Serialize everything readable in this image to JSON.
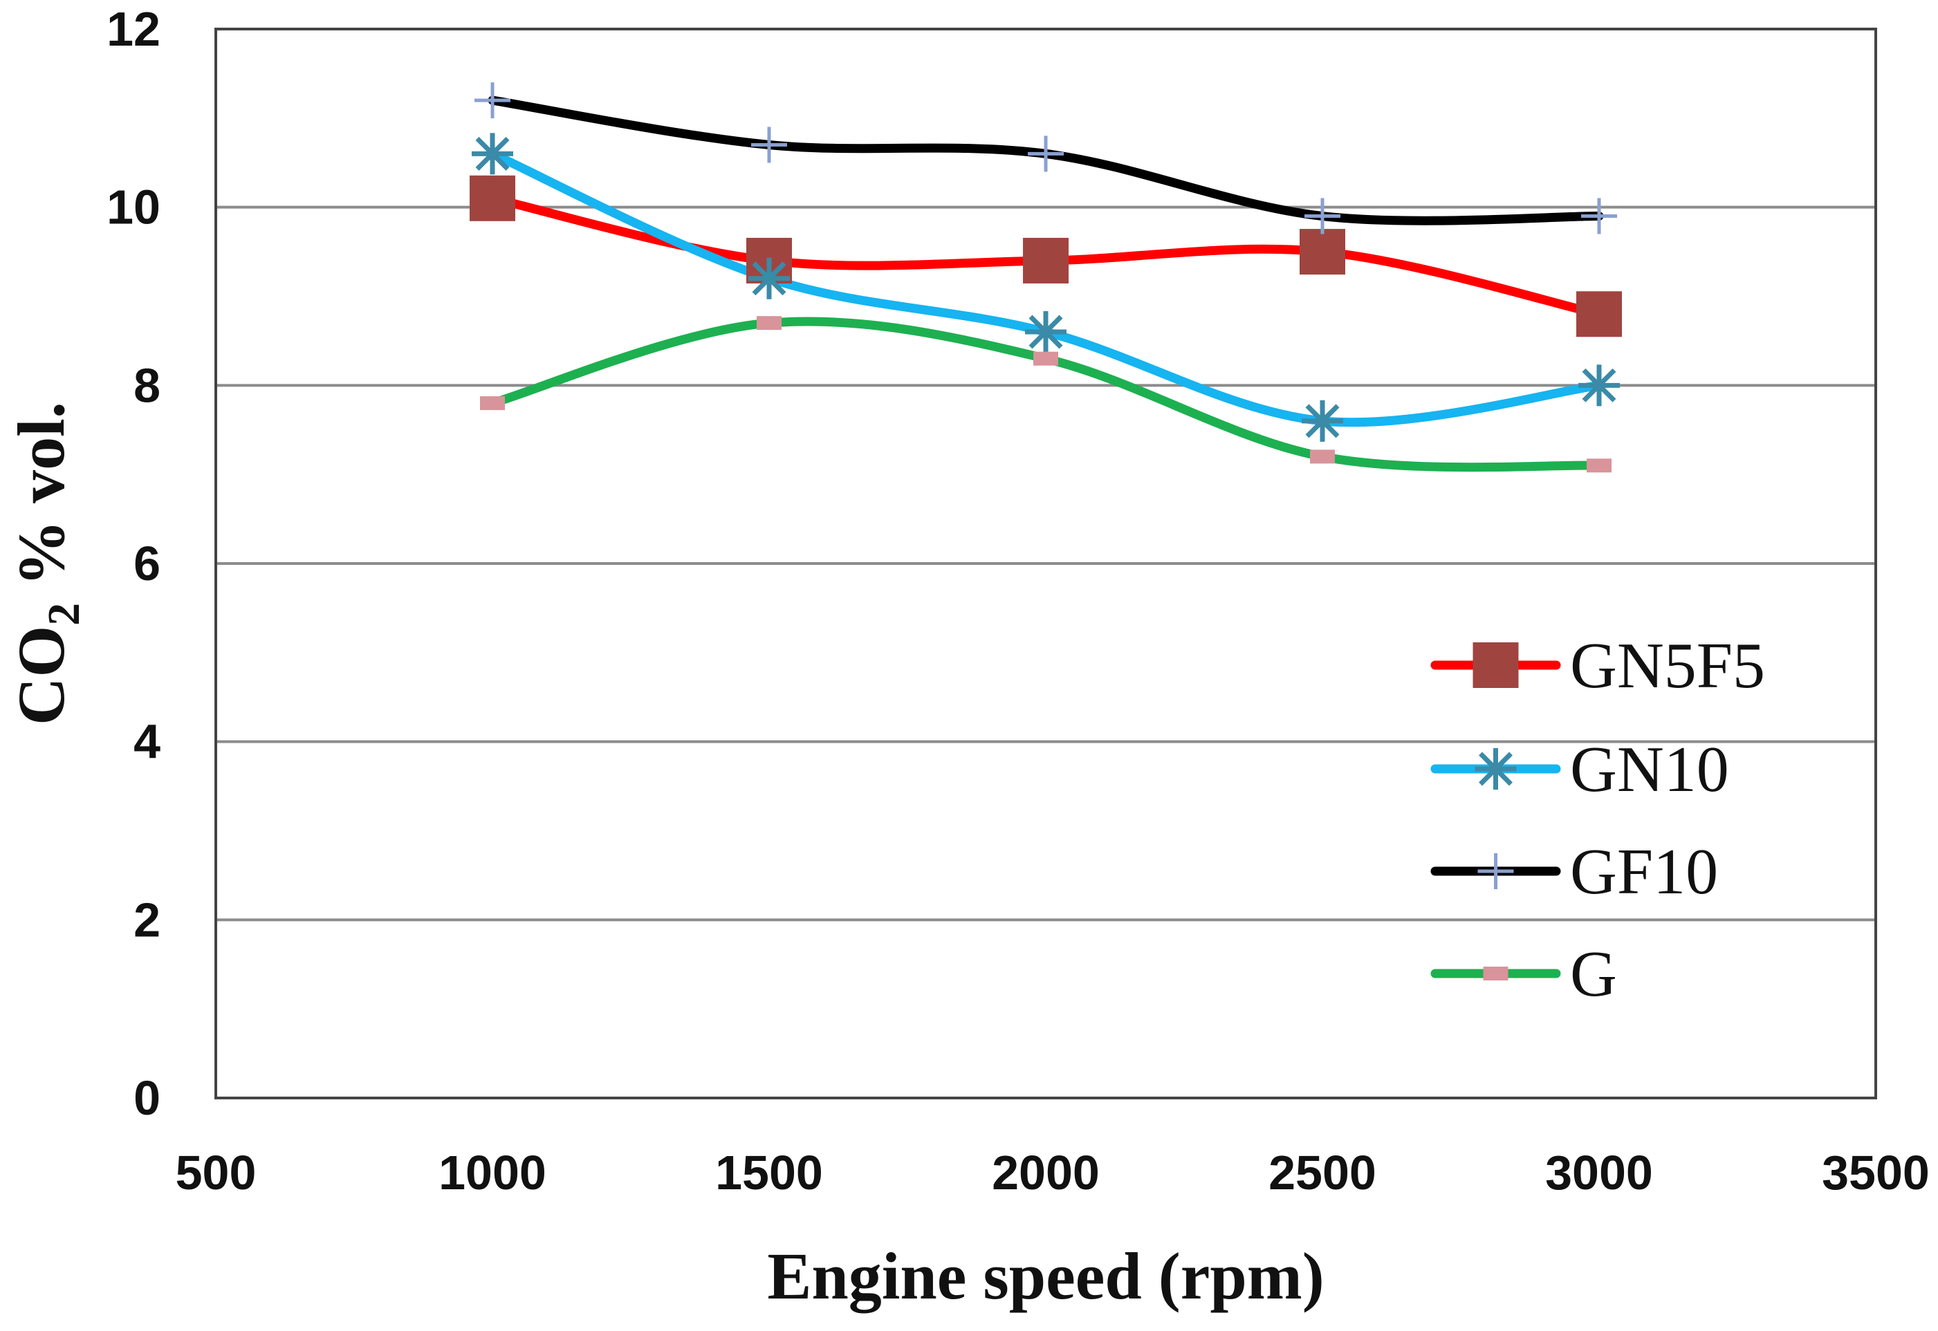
{
  "chart_data": {
    "type": "line",
    "xlabel": "Engine speed (rpm)",
    "ylabel_main": "CO",
    "ylabel_sub": "2",
    "ylabel_rest": " % vol.",
    "xlim": [
      500,
      3500
    ],
    "ylim": [
      0,
      12
    ],
    "xticks": [
      500,
      1000,
      1500,
      2000,
      2500,
      3000,
      3500
    ],
    "yticks": [
      0,
      2,
      4,
      6,
      8,
      10,
      12
    ],
    "grid": "horizontal",
    "legend_placement": "right",
    "x": [
      1000,
      1500,
      2000,
      2500,
      3000
    ],
    "series": [
      {
        "name": "GN5F5",
        "values": [
          10.1,
          9.4,
          9.4,
          9.5,
          8.8
        ],
        "line_color": "#ff0000",
        "marker": "square",
        "marker_color": "#a04440"
      },
      {
        "name": "GN10",
        "values": [
          10.6,
          9.2,
          8.6,
          7.6,
          8.0
        ],
        "line_color": "#16b4f0",
        "marker": "asterisk",
        "marker_color": "#3a8aa8"
      },
      {
        "name": "GF10",
        "values": [
          11.2,
          10.7,
          10.6,
          9.9,
          9.9
        ],
        "line_color": "#000000",
        "marker": "plus",
        "marker_color": "#8aa0d0"
      },
      {
        "name": "G",
        "values": [
          7.8,
          8.7,
          8.3,
          7.2,
          7.1
        ],
        "line_color": "#1db050",
        "marker": "dash",
        "marker_color": "#d8949a"
      }
    ]
  }
}
